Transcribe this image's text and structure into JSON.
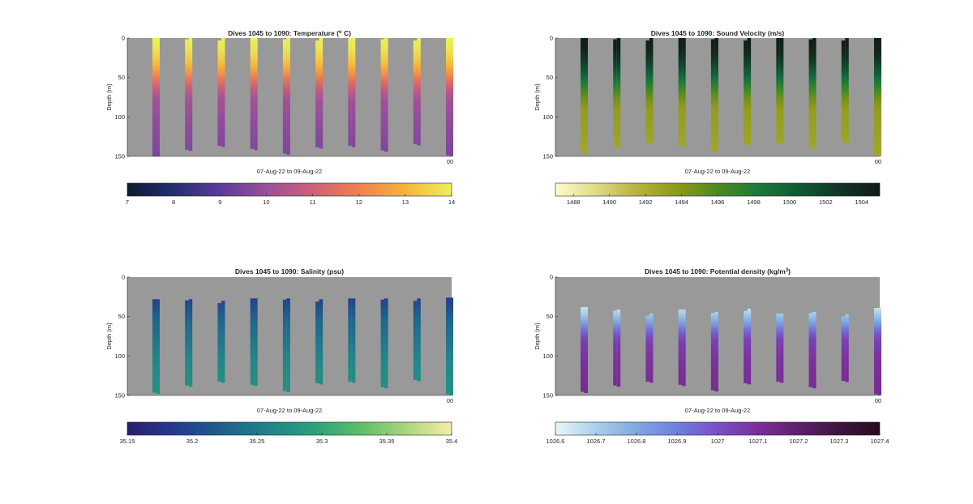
{
  "figure": {
    "background": "#ffffff",
    "plot_background": "#999999"
  },
  "chart_data": [
    {
      "type": "heatmap",
      "title": "Dives 1045 to 1090: Temperature (",
      "title_sup": "o",
      "title_tail": " C)",
      "ylabel": "Depth (m)",
      "xlabel": "07-Aug-22 to 09-Aug-22",
      "x_end_label": "00",
      "yticks": [
        "0",
        "50",
        "100",
        "150"
      ],
      "ylim": [
        0,
        150
      ],
      "y_reversed": true,
      "profiles": [
        {
          "top": 0,
          "bottom": 152
        },
        {
          "top": 0,
          "bottom": 143
        },
        {
          "top": 0,
          "bottom": 138
        },
        {
          "top": 0,
          "bottom": 142
        },
        {
          "top": 0,
          "bottom": 148
        },
        {
          "top": 0,
          "bottom": 140
        },
        {
          "top": 0,
          "bottom": 138
        },
        {
          "top": 0,
          "bottom": 144
        },
        {
          "top": 0,
          "bottom": 136
        },
        {
          "top": 0,
          "bottom": 150
        }
      ],
      "value_by_depth": [
        [
          0,
          14
        ],
        [
          14,
          13.8
        ],
        [
          30,
          13.3
        ],
        [
          42,
          12.6
        ],
        [
          55,
          11.5
        ],
        [
          68,
          10.6
        ],
        [
          80,
          10.1
        ],
        [
          110,
          9.8
        ],
        [
          152,
          9.5
        ]
      ],
      "colorbar": {
        "min": 7,
        "max": 14,
        "ticks": [
          "7",
          "8",
          "9",
          "10",
          "11",
          "12",
          "13",
          "14"
        ],
        "colors": [
          "#0d1a2e",
          "#232f6e",
          "#5a3a9e",
          "#9a4f9a",
          "#cf5f77",
          "#f0804d",
          "#f7b33a",
          "#eaf25a"
        ]
      }
    },
    {
      "type": "heatmap",
      "title": "Dives 1045 to 1090: Sound Velocity (m/s)",
      "title_sup": "",
      "title_tail": "",
      "ylabel": "Depth (m)",
      "xlabel": "07-Aug-22 to 09-Aug-22",
      "x_end_label": "00",
      "yticks": [
        "0",
        "50",
        "100",
        "150"
      ],
      "ylim": [
        0,
        150
      ],
      "y_reversed": true,
      "profiles": [
        {
          "top": 0,
          "bottom": 147
        },
        {
          "top": 0,
          "bottom": 139
        },
        {
          "top": 0,
          "bottom": 134
        },
        {
          "top": 0,
          "bottom": 138
        },
        {
          "top": 0,
          "bottom": 145
        },
        {
          "top": 0,
          "bottom": 136
        },
        {
          "top": 0,
          "bottom": 134
        },
        {
          "top": 0,
          "bottom": 141
        },
        {
          "top": 0,
          "bottom": 133
        },
        {
          "top": 0,
          "bottom": 150
        }
      ],
      "value_by_depth": [
        [
          0,
          1504.8
        ],
        [
          14,
          1504.2
        ],
        [
          30,
          1502.5
        ],
        [
          45,
          1500.2
        ],
        [
          60,
          1497.5
        ],
        [
          75,
          1495
        ],
        [
          90,
          1493.5
        ],
        [
          150,
          1492.6
        ]
      ],
      "colorbar": {
        "min": 1487,
        "max": 1505,
        "ticks": [
          "1488",
          "1490",
          "1492",
          "1494",
          "1496",
          "1498",
          "1500",
          "1502",
          "1504"
        ],
        "colors": [
          "#fdfbd0",
          "#dedb85",
          "#b8b33a",
          "#8d9a18",
          "#4c8a1e",
          "#1b7a3a",
          "#0f5a36",
          "#123625",
          "#101a12"
        ]
      }
    },
    {
      "type": "heatmap",
      "title": "Dives 1045 to 1090: Salinity (psu)",
      "title_sup": "",
      "title_tail": "",
      "ylabel": "Depth (m)",
      "xlabel": "07-Aug-22 to 09-Aug-22",
      "x_end_label": "00",
      "yticks": [
        "0",
        "50",
        "100",
        "150"
      ],
      "ylim": [
        0,
        150
      ],
      "y_reversed": true,
      "profiles": [
        {
          "top": 28,
          "bottom": 148
        },
        {
          "top": 28,
          "bottom": 139
        },
        {
          "top": 30,
          "bottom": 134
        },
        {
          "top": 27,
          "bottom": 138
        },
        {
          "top": 27,
          "bottom": 146
        },
        {
          "top": 28,
          "bottom": 136
        },
        {
          "top": 27,
          "bottom": 134
        },
        {
          "top": 27,
          "bottom": 141
        },
        {
          "top": 27,
          "bottom": 132
        },
        {
          "top": 26,
          "bottom": 150
        }
      ],
      "value_by_depth": [
        [
          26,
          35.19
        ],
        [
          40,
          35.21
        ],
        [
          55,
          35.23
        ],
        [
          80,
          35.245
        ],
        [
          110,
          35.265
        ],
        [
          150,
          35.275
        ]
      ],
      "colorbar": {
        "min": 35.15,
        "max": 35.4,
        "ticks": [
          "35.15",
          "35.2",
          "35.25",
          "35.3",
          "35.35",
          "35.4"
        ],
        "colors": [
          "#2a1e6b",
          "#243a8e",
          "#1f5d8c",
          "#21818a",
          "#2aa07c",
          "#5cbd6a",
          "#a7d57c",
          "#f6eea8"
        ]
      }
    },
    {
      "type": "heatmap",
      "title": "Dives 1045 to 1090: Potential density (kg/m",
      "title_sup": "3",
      "title_tail": ")",
      "ylabel": "Depth (m)",
      "xlabel": "07-Aug-22 to 09-Aug-22",
      "x_end_label": "00",
      "yticks": [
        "0",
        "50",
        "100",
        "150"
      ],
      "ylim": [
        0,
        150
      ],
      "y_reversed": true,
      "profiles": [
        {
          "top": 38,
          "bottom": 147
        },
        {
          "top": 41,
          "bottom": 139
        },
        {
          "top": 46,
          "bottom": 134
        },
        {
          "top": 41,
          "bottom": 138
        },
        {
          "top": 44,
          "bottom": 145
        },
        {
          "top": 40,
          "bottom": 136
        },
        {
          "top": 46,
          "bottom": 134
        },
        {
          "top": 44,
          "bottom": 141
        },
        {
          "top": 47,
          "bottom": 133
        },
        {
          "top": 39,
          "bottom": 150
        }
      ],
      "value_by_depth": [
        [
          38,
          1026.65
        ],
        [
          48,
          1026.72
        ],
        [
          58,
          1026.82
        ],
        [
          68,
          1026.95
        ],
        [
          80,
          1027.05
        ],
        [
          110,
          1027.1
        ],
        [
          150,
          1027.12
        ]
      ],
      "colorbar": {
        "min": 1026.6,
        "max": 1027.4,
        "ticks": [
          "1026.6",
          "1026.7",
          "1026.8",
          "1026.9",
          "1027",
          "1027.1",
          "1027.2",
          "1027.3",
          "1027.4"
        ],
        "colors": [
          "#e9f6f7",
          "#a9d0ea",
          "#7fa8e0",
          "#6f7fe0",
          "#7a4fc8",
          "#7a2f9a",
          "#5e1f6c",
          "#3f1440",
          "#2a0a1e"
        ]
      }
    }
  ]
}
